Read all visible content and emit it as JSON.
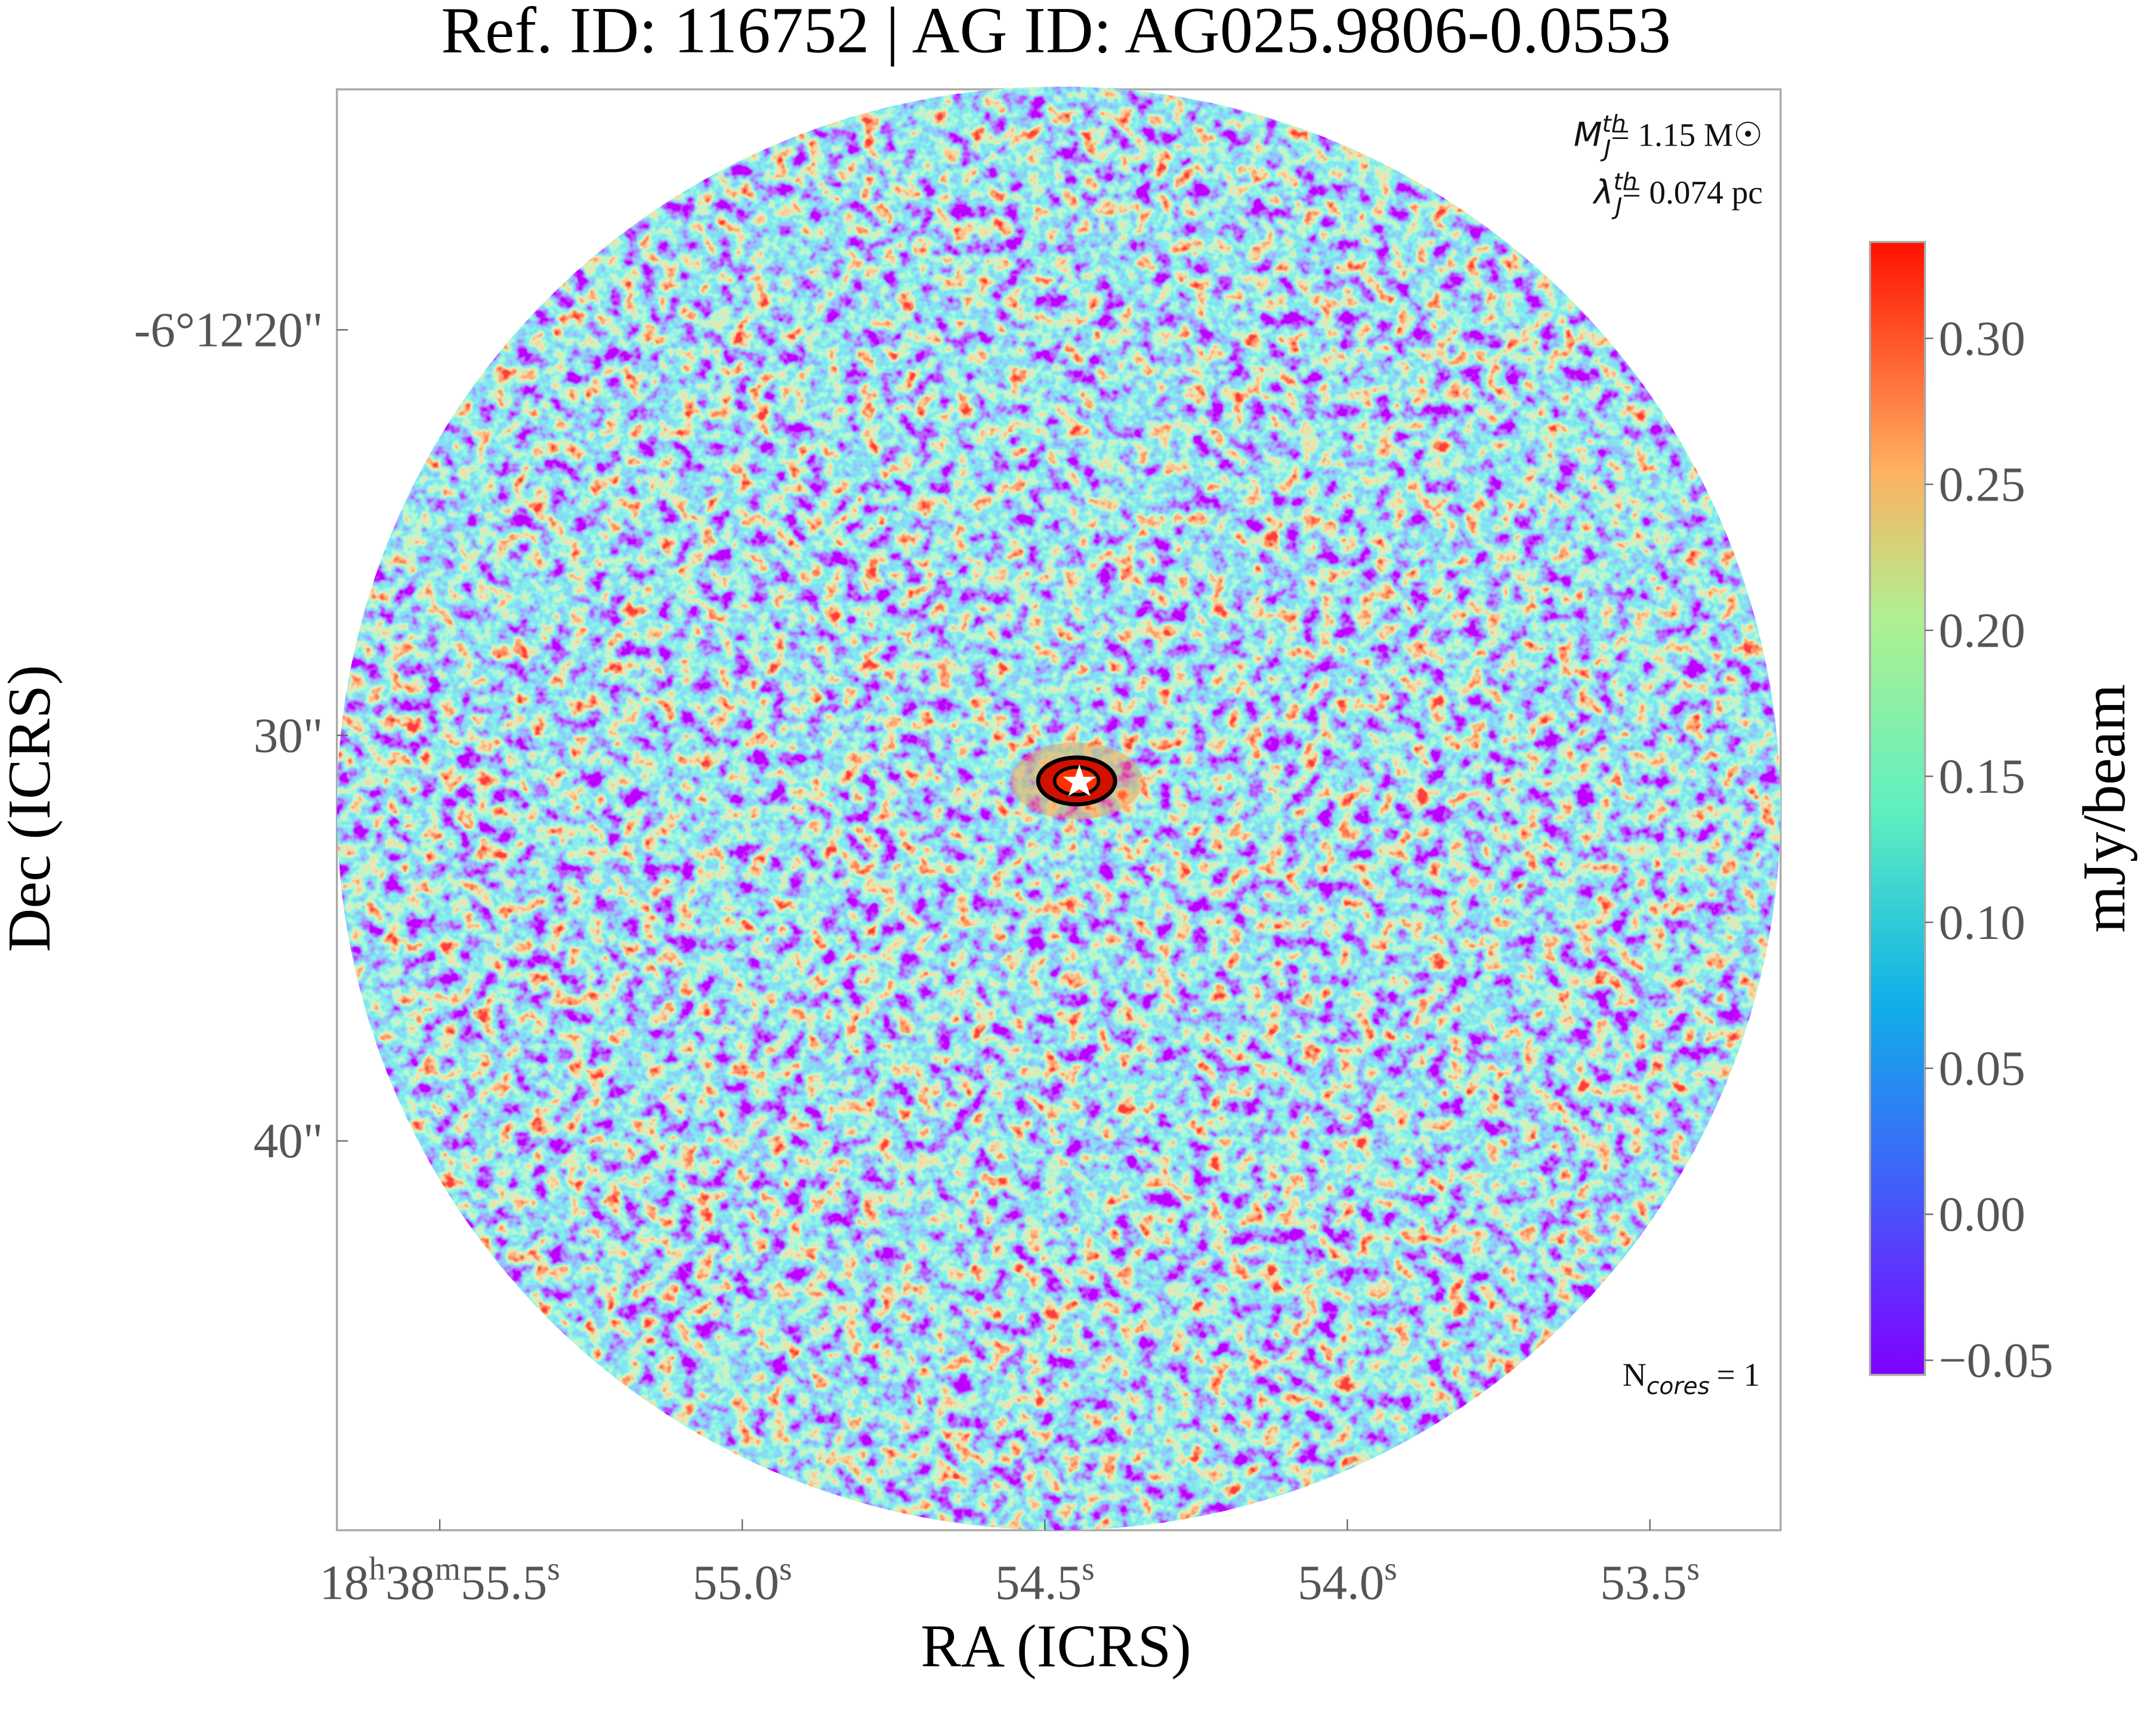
{
  "chart_data": {
    "type": "image",
    "title": "Ref. ID: 116752 | AG ID: AG025.9806-0.0553",
    "x_label": "RA (ICRS)",
    "y_label": "Dec (ICRS)",
    "colorbar_label": "mJy/beam",
    "colormap": "rainbow",
    "xlim": [
      55.67,
      53.284
    ],
    "xticks": [
      {
        "value": 55.5,
        "label": "18h38m55.5s"
      },
      {
        "value": 55.0,
        "label": "55.0s"
      },
      {
        "value": 54.5,
        "label": "54.5s"
      },
      {
        "value": 54.0,
        "label": "54.0s"
      },
      {
        "value": 53.5,
        "label": "53.5s"
      }
    ],
    "ylim": [
      14.07,
      49.6
    ],
    "yticks": [
      {
        "value": 20,
        "label": "-6°12'20\""
      },
      {
        "value": 30,
        "label": "30\""
      },
      {
        "value": 40,
        "label": "40\""
      }
    ],
    "zlim": [
      -0.055,
      0.333
    ],
    "zticks": [
      {
        "value": -0.05,
        "label": "−0.05"
      },
      {
        "value": 0,
        "label": "0.00"
      },
      {
        "value": 0.05,
        "label": "0.05"
      },
      {
        "value": 0.1,
        "label": "0.10"
      },
      {
        "value": 0.15,
        "label": "0.15"
      },
      {
        "value": 0.2,
        "label": "0.20"
      },
      {
        "value": 0.25,
        "label": "0.25"
      },
      {
        "value": 0.3,
        "label": "0.30"
      }
    ],
    "annotations": {
      "mass": {
        "symbol": "M",
        "sub": "J",
        "sup": "th",
        "text": "= 1.15 M☉"
      },
      "length": {
        "symbol": "λ",
        "sub": "J",
        "sup": "th",
        "text": "= 0.074 pc"
      },
      "cores": {
        "symbol": "N",
        "sub": "cores",
        "text": "= 1"
      }
    }
  }
}
